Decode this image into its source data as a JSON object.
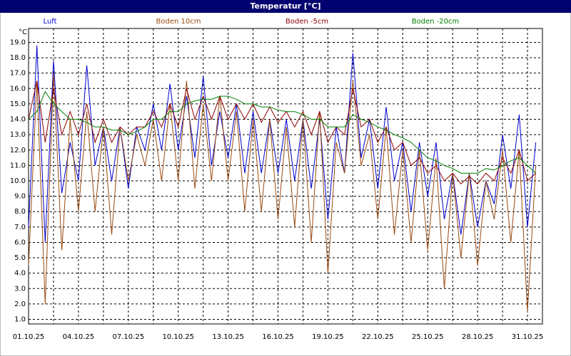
{
  "chart_data": {
    "type": "line",
    "title": "Temperatur [°C]",
    "ylabel": "°C",
    "x": [
      1,
      1.5,
      2,
      2.5,
      3,
      3.5,
      4,
      4.5,
      5,
      5.5,
      6,
      6.5,
      7,
      7.5,
      8,
      8.5,
      9,
      9.5,
      10,
      10.5,
      11,
      11.5,
      12,
      12.5,
      13,
      13.5,
      14,
      14.5,
      15,
      15.5,
      16,
      16.5,
      17,
      17.5,
      18,
      18.5,
      19,
      19.5,
      20,
      20.5,
      21,
      21.5,
      22,
      22.5,
      23,
      23.5,
      24,
      24.5,
      25,
      25.5,
      26,
      26.5,
      27,
      27.5,
      28,
      28.5,
      29,
      29.5,
      30,
      30.5,
      31,
      31.5
    ],
    "series": [
      {
        "name": "Luft",
        "color": "#0000cc",
        "values": [
          7.0,
          18.8,
          6.0,
          17.8,
          9.2,
          12.5,
          10.0,
          17.5,
          11.0,
          13.5,
          10.0,
          13.5,
          9.5,
          13.5,
          12.0,
          15.0,
          12.0,
          16.3,
          12.0,
          15.5,
          11.5,
          16.8,
          11.0,
          14.5,
          11.5,
          15.0,
          10.5,
          14.5,
          10.5,
          14.0,
          10.5,
          14.0,
          10.0,
          14.0,
          9.5,
          14.0,
          7.5,
          13.5,
          10.5,
          18.3,
          11.5,
          14.0,
          9.5,
          14.8,
          10.0,
          12.5,
          8.0,
          12.5,
          9.0,
          12.5,
          7.5,
          10.5,
          6.5,
          10.5,
          7.0,
          10.0,
          8.5,
          13.0,
          9.5,
          14.3,
          7.0,
          12.5
        ]
      },
      {
        "name": "Boden 10cm",
        "color": "#9a4a10",
        "values": [
          4.5,
          16.5,
          2.0,
          17.0,
          5.5,
          14.0,
          8.0,
          14.5,
          8.0,
          13.5,
          6.5,
          13.5,
          10.0,
          13.0,
          11.0,
          14.0,
          10.0,
          15.0,
          10.0,
          16.5,
          9.5,
          15.0,
          10.0,
          15.5,
          10.0,
          14.5,
          8.0,
          14.0,
          8.0,
          14.0,
          7.5,
          13.5,
          7.0,
          14.0,
          6.0,
          14.5,
          4.0,
          12.5,
          10.5,
          16.5,
          11.0,
          13.0,
          7.5,
          13.5,
          6.5,
          12.0,
          6.0,
          12.0,
          5.5,
          11.5,
          3.0,
          10.5,
          5.0,
          10.5,
          4.5,
          10.0,
          7.5,
          12.0,
          6.0,
          12.0,
          1.5,
          11.0
        ]
      },
      {
        "name": "Boden -5cm",
        "color": "#8b0000",
        "values": [
          14.0,
          16.5,
          12.5,
          16.0,
          13.0,
          14.5,
          13.0,
          15.0,
          12.5,
          14.0,
          12.5,
          13.5,
          13.0,
          13.5,
          13.5,
          14.5,
          13.5,
          15.0,
          13.5,
          16.0,
          14.0,
          15.5,
          14.0,
          15.5,
          14.0,
          15.0,
          14.0,
          15.0,
          13.8,
          14.8,
          13.8,
          14.5,
          13.5,
          14.5,
          13.0,
          14.5,
          12.5,
          13.5,
          13.0,
          16.0,
          13.5,
          14.0,
          12.5,
          13.5,
          12.0,
          12.5,
          11.0,
          11.5,
          10.5,
          11.0,
          10.0,
          10.5,
          9.8,
          10.3,
          9.8,
          10.5,
          10.0,
          11.5,
          10.5,
          12.0,
          10.0,
          10.5
        ]
      },
      {
        "name": "Boden -20cm",
        "color": "#008000",
        "values": [
          14.0,
          14.5,
          15.8,
          15.0,
          14.5,
          14.0,
          14.0,
          13.8,
          13.5,
          13.5,
          13.3,
          13.3,
          13.0,
          13.2,
          13.5,
          14.0,
          14.0,
          14.5,
          14.5,
          15.0,
          15.2,
          15.3,
          15.3,
          15.5,
          15.5,
          15.3,
          15.0,
          15.0,
          14.8,
          14.8,
          14.6,
          14.5,
          14.5,
          14.3,
          14.0,
          14.0,
          13.5,
          13.5,
          13.5,
          14.3,
          14.0,
          13.8,
          13.5,
          13.3,
          13.0,
          12.8,
          12.5,
          12.0,
          11.5,
          11.3,
          11.0,
          10.8,
          10.5,
          10.5,
          10.5,
          10.8,
          10.7,
          11.0,
          11.3,
          11.5,
          11.0,
          10.5
        ]
      }
    ],
    "xlim": [
      1,
      31.9
    ],
    "xticks": [
      {
        "value": 1,
        "label": "01.10.25"
      },
      {
        "value": 4,
        "label": "04.10.25"
      },
      {
        "value": 7,
        "label": "07.10.25"
      },
      {
        "value": 10,
        "label": "10.10.25"
      },
      {
        "value": 13,
        "label": "13.10.25"
      },
      {
        "value": 16,
        "label": "16.10.25"
      },
      {
        "value": 19,
        "label": "19.10.25"
      },
      {
        "value": 22,
        "label": "22.10.25"
      },
      {
        "value": 25,
        "label": "25.10.25"
      },
      {
        "value": 28,
        "label": "28.10.25"
      },
      {
        "value": 31,
        "label": "31.10.25"
      }
    ],
    "xminor": [
      2.5,
      5.5,
      8.5,
      11.5,
      14.5,
      17.5,
      20.5,
      23.5,
      26.5,
      29.5
    ],
    "ylim": [
      0.7,
      19.9
    ],
    "yticks": [
      {
        "value": 1,
        "label": "1.0"
      },
      {
        "value": 2,
        "label": "2.0"
      },
      {
        "value": 3,
        "label": "3.0"
      },
      {
        "value": 4,
        "label": "4.0"
      },
      {
        "value": 5,
        "label": "5.0"
      },
      {
        "value": 6,
        "label": "6.0"
      },
      {
        "value": 7,
        "label": "7.0"
      },
      {
        "value": 8,
        "label": "8.0"
      },
      {
        "value": 9,
        "label": "9.0"
      },
      {
        "value": 10,
        "label": "10.0"
      },
      {
        "value": 11,
        "label": "11.0"
      },
      {
        "value": 12,
        "label": "12.0"
      },
      {
        "value": 13,
        "label": "13.0"
      },
      {
        "value": 14,
        "label": "14.0"
      },
      {
        "value": 15,
        "label": "15.0"
      },
      {
        "value": 16,
        "label": "16.0"
      },
      {
        "value": 17,
        "label": "17.0"
      },
      {
        "value": 18,
        "label": "18.0"
      },
      {
        "value": 19,
        "label": "19.0"
      }
    ],
    "grid": true
  }
}
